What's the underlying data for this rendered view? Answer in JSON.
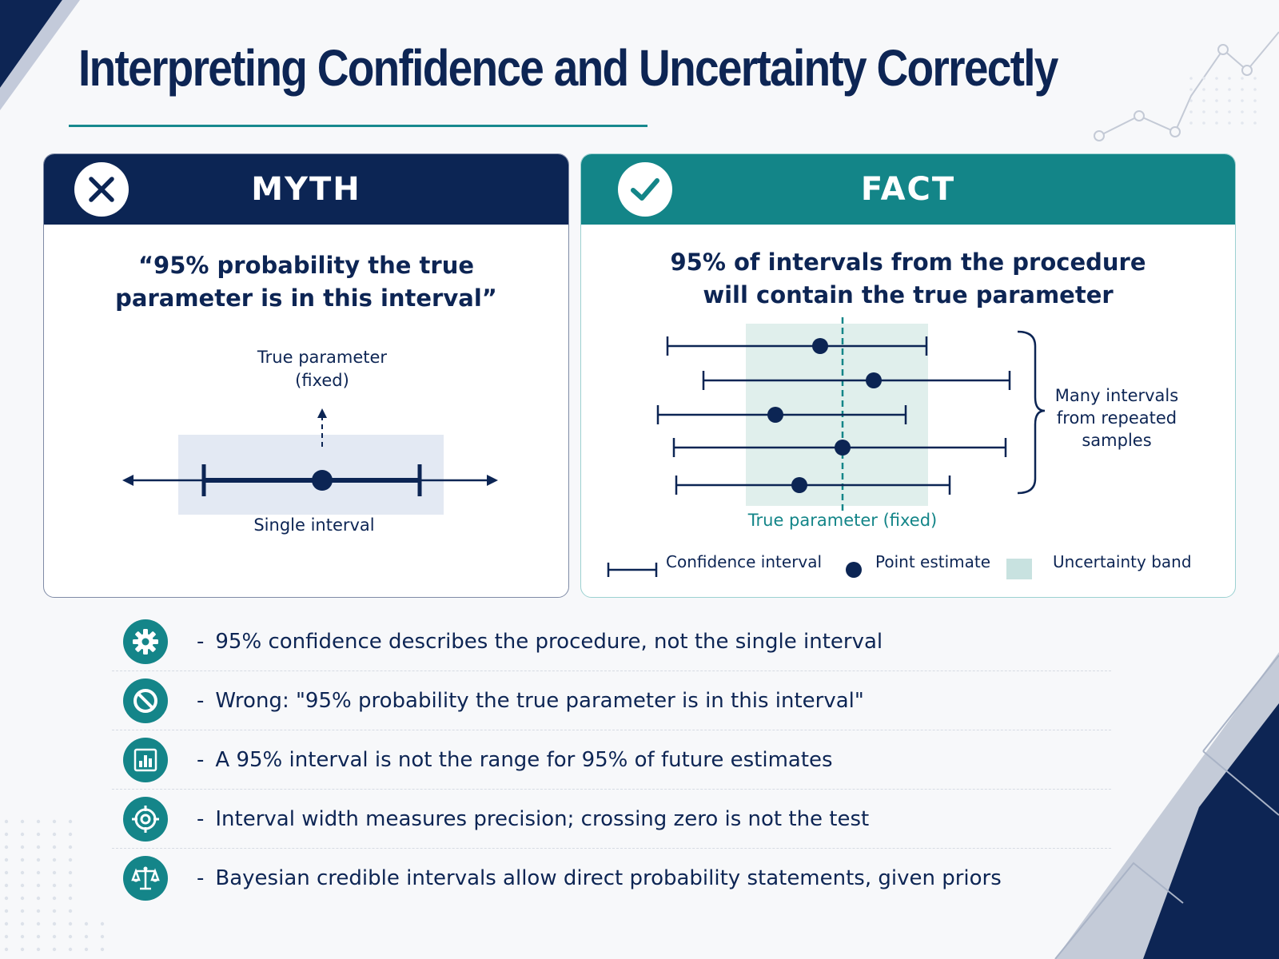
{
  "title": "Interpreting Confidence and Uncertainty Correctly",
  "colors": {
    "navy": "#0c2554",
    "teal": "#138588",
    "band_myth": "#e3e9f3",
    "band_fact": "#e0efec"
  },
  "myth": {
    "header": "MYTH",
    "icon": "x-icon",
    "statement": [
      "“95% probability the true",
      "parameter is in this interval”"
    ],
    "param_label": [
      "True parameter",
      "(fixed)"
    ],
    "caption": "Single interval"
  },
  "fact": {
    "header": "FACT",
    "icon": "check-icon",
    "statement": [
      "95% of intervals from the procedure",
      "will contain the true parameter"
    ],
    "true_param_label": "True parameter (fixed)",
    "brace_label": [
      "Many intervals",
      "from repeated",
      "samples"
    ],
    "legend": {
      "interval": "Confidence interval",
      "point": "Point estimate",
      "band": "Uncertainty band"
    }
  },
  "bullets": [
    {
      "icon": "gear-icon",
      "text": "95% confidence describes the procedure, not the single interval"
    },
    {
      "icon": "prohibited-icon",
      "text": "Wrong: \"95% probability the true parameter is in this interval\""
    },
    {
      "icon": "bar-chart-icon",
      "text": "A 95% interval is not the range for 95% of future estimates"
    },
    {
      "icon": "target-icon",
      "text": "Interval width measures precision; crossing zero is not the test"
    },
    {
      "icon": "balance-scale-icon",
      "text": "Bayesian credible intervals allow direct probability statements, given priors"
    }
  ]
}
